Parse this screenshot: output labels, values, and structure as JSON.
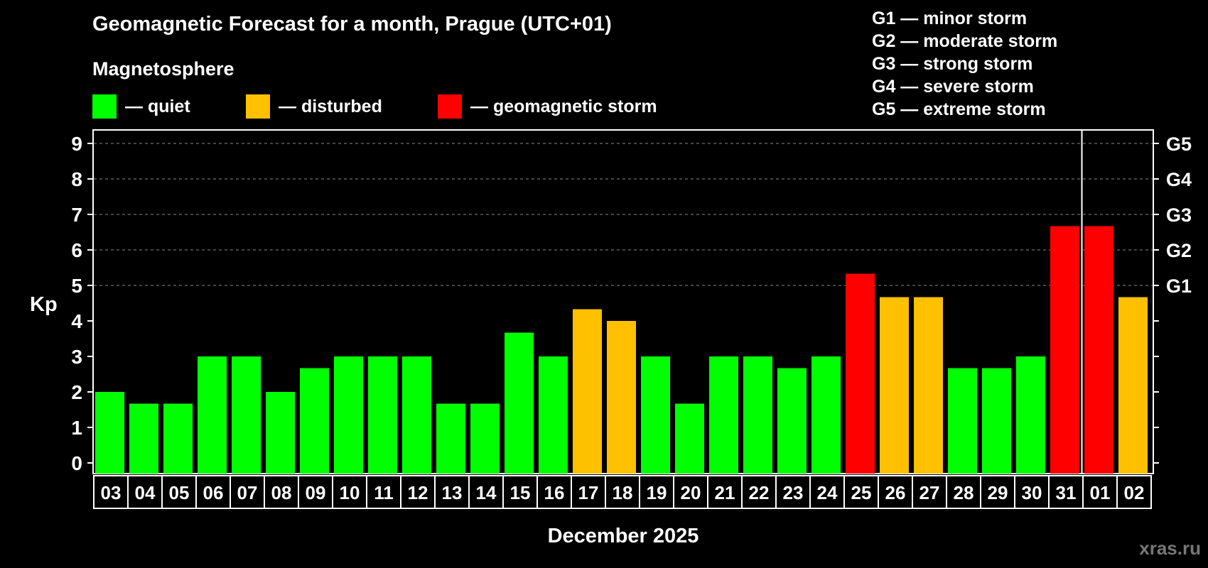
{
  "title": "Geomagnetic Forecast for a month, Prague (UTC+01)",
  "subtitle": "Magnetosphere",
  "legend": [
    {
      "label": "— quiet",
      "color": "#00ff00"
    },
    {
      "label": "— disturbed",
      "color": "#ffc000"
    },
    {
      "label": "— geomagnetic storm",
      "color": "#ff0000"
    }
  ],
  "storm_levels": [
    "G1 — minor storm",
    "G2 — moderate storm",
    "G3 — strong storm",
    "G4 — severe storm",
    "G5 — extreme storm"
  ],
  "watermark": "xras.ru",
  "chart_data": {
    "type": "bar",
    "title": "Geomagnetic Forecast for a month, Prague (UTC+01)",
    "xlabel": "December 2025",
    "ylabel": "Kp",
    "ylim": [
      0,
      9
    ],
    "yticks": [
      "0",
      "1",
      "2",
      "3",
      "4",
      "5",
      "6",
      "7",
      "8",
      "9"
    ],
    "right_ticks": [
      {
        "label": "G1",
        "value": 5
      },
      {
        "label": "G2",
        "value": 6
      },
      {
        "label": "G3",
        "value": 7
      },
      {
        "label": "G4",
        "value": 8
      },
      {
        "label": "G5",
        "value": 9
      }
    ],
    "grid": "dashed lines at Kp 5 to 9",
    "month_divider_after": "31",
    "categories": [
      "03",
      "04",
      "05",
      "06",
      "07",
      "08",
      "09",
      "10",
      "11",
      "12",
      "13",
      "14",
      "15",
      "16",
      "17",
      "18",
      "19",
      "20",
      "21",
      "22",
      "23",
      "24",
      "25",
      "26",
      "27",
      "28",
      "29",
      "30",
      "31",
      "01",
      "02"
    ],
    "values": [
      2,
      1.67,
      1.67,
      3,
      3,
      2,
      2.67,
      3,
      3,
      3,
      1.67,
      1.67,
      3.67,
      3,
      4.33,
      4,
      3,
      1.67,
      3,
      3,
      2.67,
      3,
      5.33,
      4.67,
      4.67,
      2.67,
      2.67,
      3,
      6.67,
      6.67,
      4.67
    ],
    "status": [
      "quiet",
      "quiet",
      "quiet",
      "quiet",
      "quiet",
      "quiet",
      "quiet",
      "quiet",
      "quiet",
      "quiet",
      "quiet",
      "quiet",
      "quiet",
      "quiet",
      "disturbed",
      "disturbed",
      "quiet",
      "quiet",
      "quiet",
      "quiet",
      "quiet",
      "quiet",
      "storm",
      "disturbed",
      "disturbed",
      "quiet",
      "quiet",
      "quiet",
      "storm",
      "storm",
      "disturbed"
    ],
    "status_colors": {
      "quiet": "#00ff00",
      "disturbed": "#ffc000",
      "storm": "#ff0000"
    }
  }
}
